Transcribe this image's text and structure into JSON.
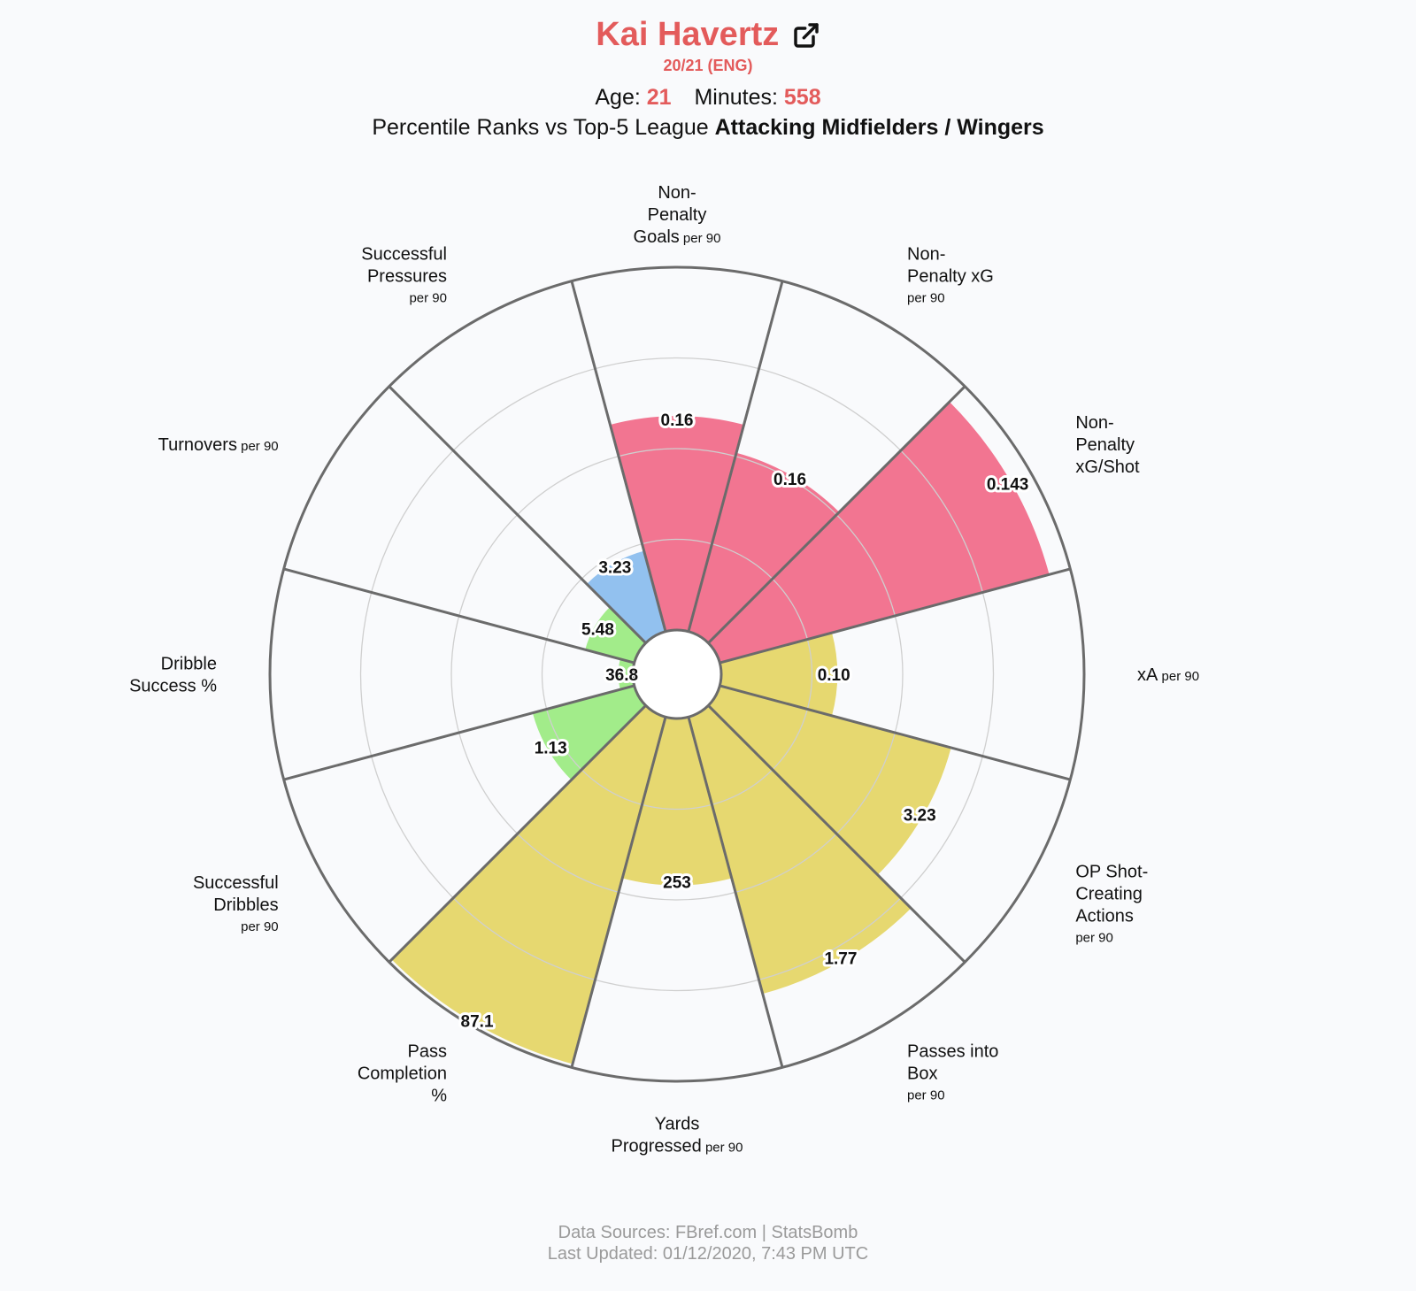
{
  "header": {
    "player_name": "Kai Havertz",
    "season": "20/21 (ENG)",
    "age_label": "Age:",
    "age_value": "21",
    "minutes_label": "Minutes:",
    "minutes_value": "558",
    "subtitle_prefix": "Percentile Ranks vs Top-5 League",
    "subtitle_bold": "Attacking Midfielders / Wingers",
    "link_icon": "external-link-icon"
  },
  "footer": {
    "sources": "Data Sources: FBref.com | StatsBomb",
    "updated": "Last Updated: 01/12/2020, 7:43 PM UTC"
  },
  "colors": {
    "attacking": "#f27591",
    "possession": "#e6d870",
    "dribbling": "#a2ec8a",
    "defending": "#92c1ef",
    "spoke": "#6b6b6b",
    "ring": "#cfcfcf",
    "accent": "#e35b5b"
  },
  "chart_data": {
    "type": "polar-bar",
    "scale": "percentile",
    "rlim": [
      0,
      100
    ],
    "grid": true,
    "categories": [
      {
        "lines": [
          "Non-",
          "Penalty",
          "Goals"
        ],
        "small": "per 90",
        "value": "0.16",
        "percentile": 59,
        "group": "attacking"
      },
      {
        "lines": [
          "Non-",
          "Penalty xG"
        ],
        "small": "per 90",
        "value": "0.16",
        "percentile": 51,
        "group": "attacking"
      },
      {
        "lines": [
          "Non-",
          "Penalty",
          "xG/Shot"
        ],
        "small": "",
        "value": "0.143",
        "percentile": 94,
        "group": "attacking"
      },
      {
        "lines": [
          "xA"
        ],
        "small": "per 90",
        "value": "0.10",
        "percentile": 32,
        "group": "possession"
      },
      {
        "lines": [
          "OP Shot-",
          "Creating",
          "Actions"
        ],
        "small": "per 90",
        "value": "3.23",
        "percentile": 66,
        "group": "possession"
      },
      {
        "lines": [
          "Passes into",
          "Box"
        ],
        "small": "per 90",
        "value": "1.77",
        "percentile": 79,
        "group": "possession"
      },
      {
        "lines": [
          "Yards",
          "Progressed"
        ],
        "small": "per 90",
        "value": "253",
        "percentile": 46,
        "group": "possession"
      },
      {
        "lines": [
          "Pass",
          "Completion",
          "%"
        ],
        "small": "",
        "value": "87.1",
        "percentile": 99,
        "group": "possession"
      },
      {
        "lines": [
          "Successful",
          "Dribbles"
        ],
        "small": "per 90",
        "value": "1.13",
        "percentile": 29,
        "group": "dribbling"
      },
      {
        "lines": [
          "Dribble",
          "Success %"
        ],
        "small": "",
        "value": "36.8",
        "percentile": 4,
        "group": "dribbling"
      },
      {
        "lines": [
          "Turnovers"
        ],
        "small": "per 90",
        "value": "5.48",
        "percentile": 14,
        "group": "dribbling"
      },
      {
        "lines": [
          "Successful",
          "Pressures"
        ],
        "small": "per 90",
        "value": "3.23",
        "percentile": 23,
        "group": "defending"
      }
    ]
  }
}
